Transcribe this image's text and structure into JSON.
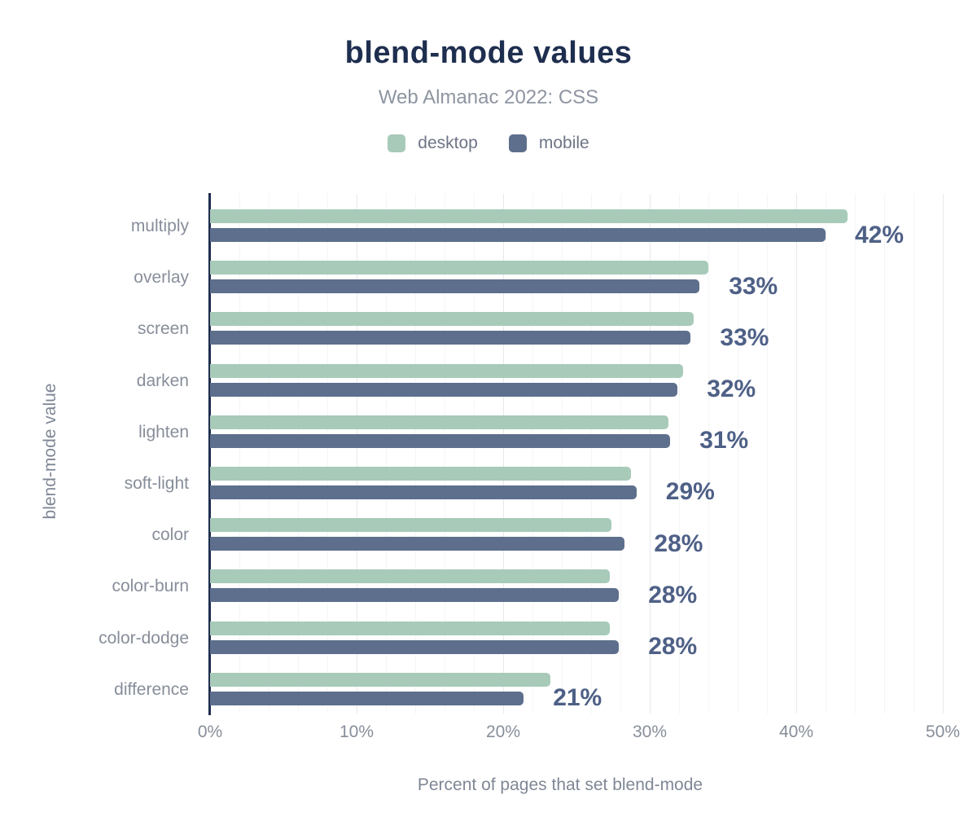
{
  "header": {
    "title": "blend-mode values",
    "subtitle": "Web Almanac 2022: CSS"
  },
  "legend": {
    "items": [
      {
        "label": "desktop",
        "color": "#a8cab9"
      },
      {
        "label": "mobile",
        "color": "#5d6f8c"
      }
    ]
  },
  "axes": {
    "x_title": "Percent of pages that set blend-mode",
    "y_title": "blend-mode value"
  },
  "colors": {
    "title": "#1e2e4f",
    "subtitle": "#8e95a1",
    "desktop_bar": "#a8cab9",
    "mobile_bar": "#5d6f8c",
    "data_label": "#4e6086",
    "axis_line": "#1e2e4f",
    "minor_gridline": "#f4f5f7",
    "major_gridline": "#e7e9ec",
    "tick_text": "#878e9a"
  },
  "chart_data": {
    "type": "bar",
    "orientation": "horizontal",
    "title": "blend-mode values",
    "subtitle": "Web Almanac 2022: CSS",
    "xlabel": "Percent of pages that set blend-mode",
    "ylabel": "blend-mode value",
    "xlim": [
      0,
      50
    ],
    "x_ticks": [
      "0%",
      "10%",
      "20%",
      "30%",
      "40%",
      "50%"
    ],
    "grid": {
      "minor_step": 2,
      "major_step": 10
    },
    "legend_position": "top",
    "categories": [
      "multiply",
      "overlay",
      "screen",
      "darken",
      "lighten",
      "soft-light",
      "color",
      "color-burn",
      "color-dodge",
      "difference"
    ],
    "series": [
      {
        "name": "desktop",
        "color": "#a8cab9",
        "values": [
          43.5,
          34.0,
          33.0,
          32.3,
          31.3,
          28.7,
          27.4,
          27.3,
          27.3,
          23.2
        ]
      },
      {
        "name": "mobile",
        "color": "#5d6f8c",
        "values": [
          42.0,
          33.4,
          32.8,
          31.9,
          31.4,
          29.1,
          28.3,
          27.9,
          27.9,
          21.4
        ]
      }
    ],
    "data_labels": [
      "42%",
      "33%",
      "33%",
      "32%",
      "31%",
      "29%",
      "28%",
      "28%",
      "28%",
      "21%"
    ]
  }
}
